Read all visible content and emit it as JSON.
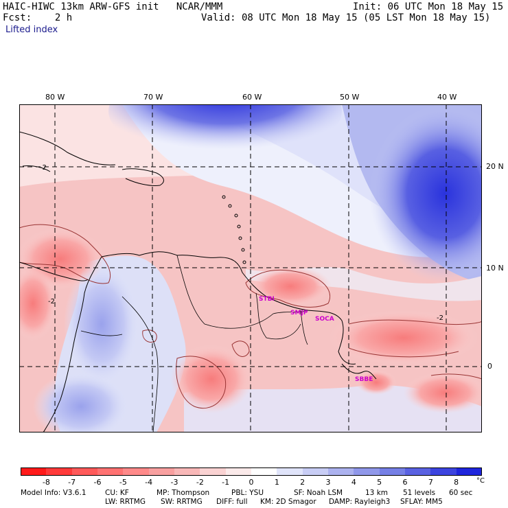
{
  "header": {
    "model_line": "HAIC-HIWC 13km ARW-GFS init   NCAR/MMM",
    "fcst_line": "Fcst:    2 h",
    "init_line": "Init: 06 UTC Mon 18 May 15",
    "valid_line": "Valid: 08 UTC Mon 18 May 15 (05 LST Mon 18 May 15)",
    "field": "Lifted index"
  },
  "map": {
    "lon_labels": [
      "80 W",
      "70 W",
      "60 W",
      "50 W",
      "40 W"
    ],
    "lat_labels": [
      "20 N",
      "10 N",
      "0"
    ],
    "stations": [
      "STBI",
      "SMJP",
      "SOCA",
      "SBBE"
    ],
    "contour_label": "-2"
  },
  "colorbar": {
    "labels": [
      "-8",
      "-7",
      "-6",
      "-5",
      "-4",
      "-3",
      "-2",
      "-1",
      "0",
      "1",
      "2",
      "3",
      "4",
      "5",
      "6",
      "7",
      "8"
    ],
    "unit": "°C",
    "colors": [
      "#ff1a1a",
      "#ff3a3a",
      "#ff5a5a",
      "#ff7272",
      "#ff8a8a",
      "#f9a0a0",
      "#f9b8b8",
      "#fad2d2",
      "#fbeaea",
      "#ffffff",
      "#e0e4fa",
      "#c8cdf5",
      "#acb2ef",
      "#9098ea",
      "#7680e6",
      "#5a62e2",
      "#3c44df",
      "#1f26dc"
    ]
  },
  "footer": {
    "line1": [
      "Model Info: V3.6.1",
      "CU: KF",
      "MP: Thompson",
      "PBL: YSU",
      "SF: Noah LSM",
      "13 km",
      "51 levels",
      "60 sec"
    ],
    "line2": [
      "LW: RRTMG",
      "SW: RRTMG",
      "DIFF: full",
      "KM: 2D Smagor",
      "DAMP: Rayleigh3",
      "SFLAY: MM5"
    ]
  }
}
